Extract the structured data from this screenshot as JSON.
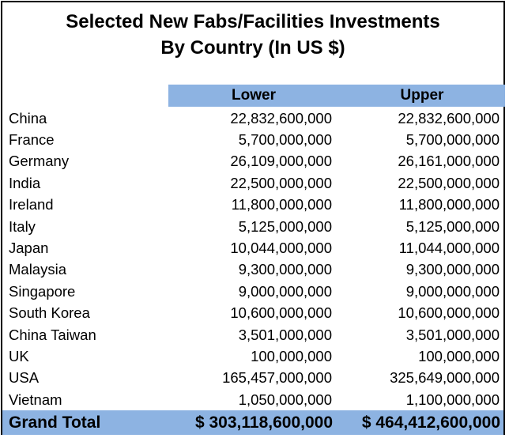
{
  "chart_data": {
    "type": "table",
    "title": "Selected New Fabs/Facilities Investments",
    "subtitle": "By Country (In US $)",
    "columns": [
      "Lower",
      "Upper"
    ],
    "rows": [
      {
        "country": "China",
        "lower": "22,832,600,000",
        "upper": "22,832,600,000"
      },
      {
        "country": "France",
        "lower": "5,700,000,000",
        "upper": "5,700,000,000"
      },
      {
        "country": "Germany",
        "lower": "26,109,000,000",
        "upper": "26,161,000,000"
      },
      {
        "country": "India",
        "lower": "22,500,000,000",
        "upper": "22,500,000,000"
      },
      {
        "country": "Ireland",
        "lower": "11,800,000,000",
        "upper": "11,800,000,000"
      },
      {
        "country": "Italy",
        "lower": "5,125,000,000",
        "upper": "5,125,000,000"
      },
      {
        "country": "Japan",
        "lower": "10,044,000,000",
        "upper": "11,044,000,000"
      },
      {
        "country": "Malaysia",
        "lower": "9,300,000,000",
        "upper": "9,300,000,000"
      },
      {
        "country": "Singapore",
        "lower": "9,000,000,000",
        "upper": "9,000,000,000"
      },
      {
        "country": "South Korea",
        "lower": "10,600,000,000",
        "upper": "10,600,000,000"
      },
      {
        "country": "China Taiwan",
        "lower": "3,501,000,000",
        "upper": "3,501,000,000"
      },
      {
        "country": "UK",
        "lower": "100,000,000",
        "upper": "100,000,000"
      },
      {
        "country": "USA",
        "lower": "165,457,000,000",
        "upper": "325,649,000,000"
      },
      {
        "country": "Vietnam",
        "lower": "1,050,000,000",
        "upper": "1,100,000,000"
      }
    ],
    "total": {
      "label": "Grand Total",
      "lower": "$ 303,118,600,000",
      "upper": "$ 464,412,600,000"
    }
  },
  "colors": {
    "header_fill": "#8db3e2",
    "border": "#000000"
  }
}
